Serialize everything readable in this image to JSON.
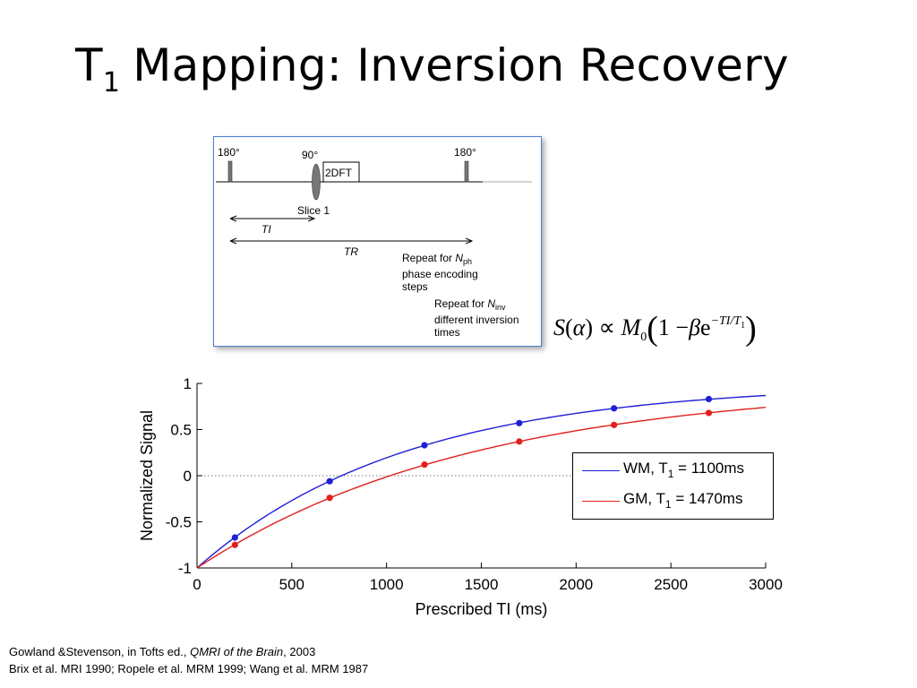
{
  "slide": {
    "title_main": "T",
    "title_sub": "1",
    "title_rest": "Mapping: Inversion Recovery"
  },
  "sequence": {
    "pulse_180_left": "180°",
    "pulse_90": "90°",
    "readout": "2DFT",
    "pulse_180_right": "180°",
    "slice": "Slice 1",
    "ti": "TI",
    "tr": "TR",
    "repeat_ph_prefix": "Repeat for ",
    "repeat_ph_var": "N",
    "repeat_ph_sub": "ph",
    "repeat_ph_line2": "phase encoding",
    "repeat_ph_line3": "steps",
    "repeat_inv_prefix": "Repeat for ",
    "repeat_inv_var": "N",
    "repeat_inv_sub": "inv",
    "repeat_inv_line2": "different inversion",
    "repeat_inv_line3": "times"
  },
  "equation": {
    "s": "S",
    "lparen": "(",
    "alpha": "α",
    "rparen": ")",
    "prop": "∝",
    "m": "M",
    "m_sub": "0",
    "big_l": "(",
    "one_minus": "1 − ",
    "beta": "β",
    "e": "e",
    "exponent": "−TI/T",
    "exponent_sub": "1",
    "big_r": ")"
  },
  "chart_data": {
    "type": "line",
    "xlabel": "Prescribed TI (ms)",
    "ylabel": "Normalized Signal",
    "xlim": [
      0,
      3000
    ],
    "ylim": [
      -1,
      1
    ],
    "x_ticks": [
      0,
      500,
      1000,
      1500,
      2000,
      2500,
      3000
    ],
    "y_ticks": [
      -1,
      -0.5,
      0,
      0.5,
      1
    ],
    "x_tick_labels": [
      "0",
      "500",
      "1000",
      "1500",
      "2000",
      "2500",
      "3000"
    ],
    "y_tick_labels": [
      "-1",
      "-0.5",
      "0",
      "0.5",
      "1"
    ],
    "zero_line": "dotted",
    "legend_position": "middle-right",
    "series": [
      {
        "name": "WM",
        "legend_prefix": "WM, T",
        "legend_sub": "1",
        "legend_suffix": " = 1100ms",
        "t1_ms": 1100,
        "color": "#1f1fd6",
        "points_x": [
          200,
          700,
          1200,
          1700,
          2200,
          2700
        ],
        "points_y": [
          -0.67,
          -0.06,
          0.33,
          0.57,
          0.73,
          0.83
        ]
      },
      {
        "name": "GM",
        "legend_prefix": "GM, T",
        "legend_sub": "1",
        "legend_suffix": " = 1470ms",
        "t1_ms": 1470,
        "color": "#e0201e",
        "points_x": [
          200,
          700,
          1200,
          1700,
          2200,
          2700
        ],
        "points_y": [
          -0.75,
          -0.24,
          0.12,
          0.37,
          0.55,
          0.68
        ]
      }
    ]
  },
  "references": {
    "line1_a": "Gowland &Stevenson, in Tofts ed., ",
    "line1_b": "QMRI of the Brain",
    "line1_c": ", 2003",
    "line2": "Brix et al. MRI 1990; Ropele et al. MRM 1999; Wang et al. MRM 1987"
  }
}
